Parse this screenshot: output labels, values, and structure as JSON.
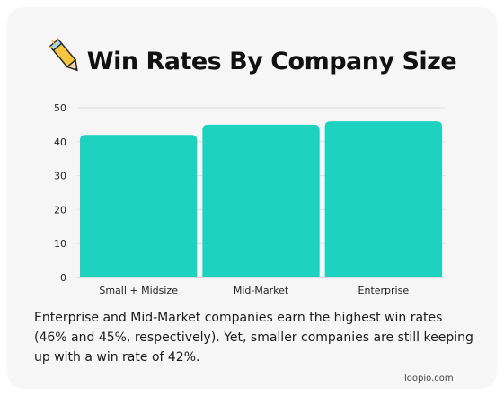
{
  "chart_data": {
    "type": "bar",
    "title": "Win Rates By Company Size",
    "categories": [
      "Small + Midsize",
      "Mid-Market",
      "Enterprise"
    ],
    "values": [
      42,
      45,
      46
    ],
    "ylim": [
      0,
      50
    ],
    "yticks": [
      0,
      10,
      20,
      30,
      40,
      50
    ],
    "xlabel": "",
    "ylabel": "",
    "grid": true,
    "bar_color": "#1dd3c0"
  },
  "caption": "Enterprise and Mid-Market companies earn the highest win rates (46% and 45%, respectively). Yet, smaller companies are still keeping up with a win rate of 42%.",
  "brand": "loopio.com",
  "icons": {
    "title_icon": "pencil-icon"
  },
  "colors": {
    "card": "#f6f6f6",
    "bar": "#1dd3c0",
    "text": "#111111"
  }
}
